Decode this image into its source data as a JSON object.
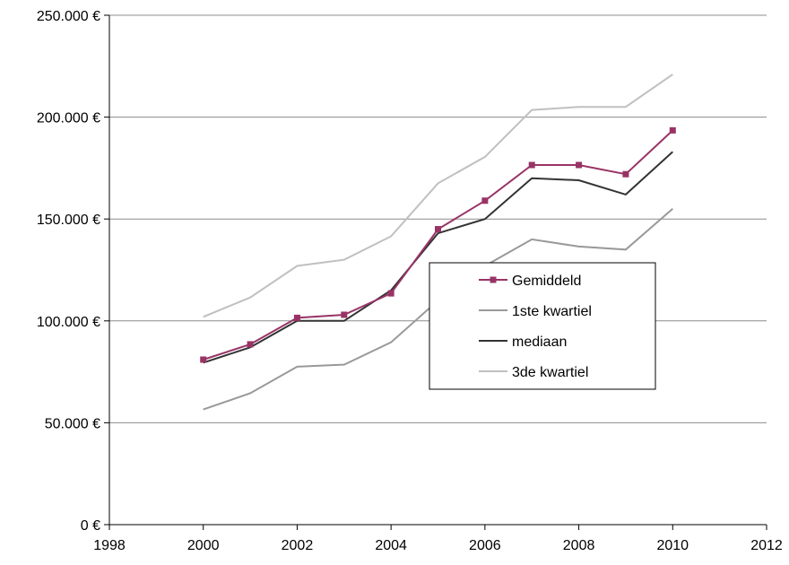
{
  "chart_data": {
    "type": "line",
    "title": "",
    "xlabel": "",
    "ylabel": "",
    "xlim": [
      1998,
      2012
    ],
    "ylim": [
      0,
      250000
    ],
    "x_ticks": [
      1998,
      2000,
      2002,
      2004,
      2006,
      2008,
      2010,
      2012
    ],
    "x_tick_labels": [
      "1998",
      "2000",
      "2002",
      "2004",
      "2006",
      "2008",
      "2010",
      "2012"
    ],
    "y_ticks": [
      0,
      50000,
      100000,
      150000,
      200000,
      250000
    ],
    "y_tick_labels": [
      "0 €",
      "50.000 €",
      "100.000 €",
      "150.000 €",
      "200.000 €",
      "250.000 €"
    ],
    "grid": "horizontal",
    "legend_position": "center-right",
    "x": [
      2000,
      2001,
      2002,
      2003,
      2004,
      2005,
      2006,
      2007,
      2008,
      2009,
      2010
    ],
    "series": [
      {
        "name": "Gemiddeld",
        "color": "#993366",
        "marker": "square",
        "values": [
          81000,
          88500,
          101500,
          103000,
          113500,
          145000,
          159000,
          176500,
          176500,
          172000,
          193500
        ]
      },
      {
        "name": "1ste kwartiel",
        "color": "#999999",
        "marker": "none",
        "values": [
          56500,
          64500,
          77500,
          78500,
          89500,
          110000,
          127000,
          140000,
          136500,
          135000,
          155000
        ]
      },
      {
        "name": "mediaan",
        "color": "#333333",
        "marker": "none",
        "values": [
          79500,
          87000,
          100000,
          100000,
          115000,
          143000,
          150000,
          170000,
          169000,
          162000,
          183000
        ]
      },
      {
        "name": "3de kwartiel",
        "color": "#c0c0c0",
        "marker": "none",
        "values": [
          102000,
          111500,
          127000,
          130000,
          141500,
          167500,
          180500,
          203500,
          205000,
          205000,
          221000
        ]
      }
    ]
  }
}
